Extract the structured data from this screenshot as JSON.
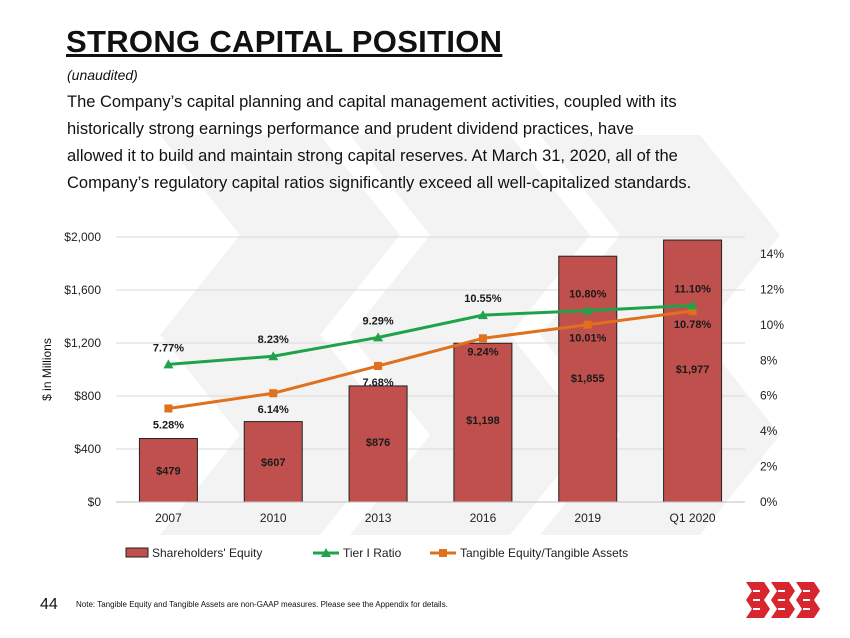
{
  "header": {
    "title": "STRONG CAPITAL POSITION",
    "subtitle": "(unaudited)",
    "paragraph_lines": [
      "The Company’s capital planning  and capital management  activities, coupled with its",
      "historically strong earnings performance  and prudent dividend practices, have",
      "allowed it to build  and maintain strong capital reserves. At March 31, 2020, all of the",
      "Company’s regulatory capital ratios significantly exceed all well-capitalized  standards."
    ]
  },
  "chart_data": {
    "type": "bar",
    "categories": [
      "2007",
      "2010",
      "2013",
      "2016",
      "2019",
      "Q1 2020"
    ],
    "ylabel": "$ in Millions",
    "ylim": [
      0,
      2000
    ],
    "y_ticks": [
      0,
      400,
      800,
      1200,
      1600,
      2000
    ],
    "y_tick_labels": [
      "$0",
      "$400",
      "$800",
      "$1,200",
      "$1,600",
      "$2,000"
    ],
    "y2lim": [
      0,
      15
    ],
    "y2_ticks": [
      0,
      2,
      4,
      6,
      8,
      10,
      12,
      14
    ],
    "y2_tick_labels": [
      "0%",
      "2%",
      "4%",
      "6%",
      "8%",
      "10%",
      "12%",
      "14%"
    ],
    "series": [
      {
        "name": "Shareholders' Equity",
        "kind": "bar",
        "axis": "left",
        "color": "#C0504D",
        "values": [
          479,
          607,
          876,
          1198,
          1855,
          1977
        ],
        "labels": [
          "$479",
          "$607",
          "$876",
          "$1,198",
          "$1,855",
          "$1,977"
        ]
      },
      {
        "name": "Tier I Ratio",
        "kind": "line",
        "marker": "triangle",
        "axis": "right",
        "color": "#1FA34A",
        "values": [
          7.77,
          8.23,
          9.29,
          10.55,
          10.8,
          11.1
        ],
        "labels": [
          "7.77%",
          "8.23%",
          "9.29%",
          "10.55%",
          "10.80%",
          "11.10%"
        ]
      },
      {
        "name": "Tangible Equity/Tangible Assets",
        "kind": "line",
        "marker": "square",
        "axis": "right",
        "color": "#E0701E",
        "values": [
          5.28,
          6.14,
          7.68,
          9.24,
          10.01,
          10.78
        ],
        "labels": [
          "5.28%",
          "6.14%",
          "7.68%",
          "9.24%",
          "10.01%",
          "10.78%"
        ]
      }
    ],
    "legend_position": "bottom",
    "grid": true
  },
  "footer": {
    "page_number": "44",
    "note": "Note: Tangible Equity and Tangible Assets are non-GAAP measures. Please see the Appendix for details."
  },
  "colors": {
    "logo": "#D8262E",
    "watermark": "#F3F3F3"
  }
}
